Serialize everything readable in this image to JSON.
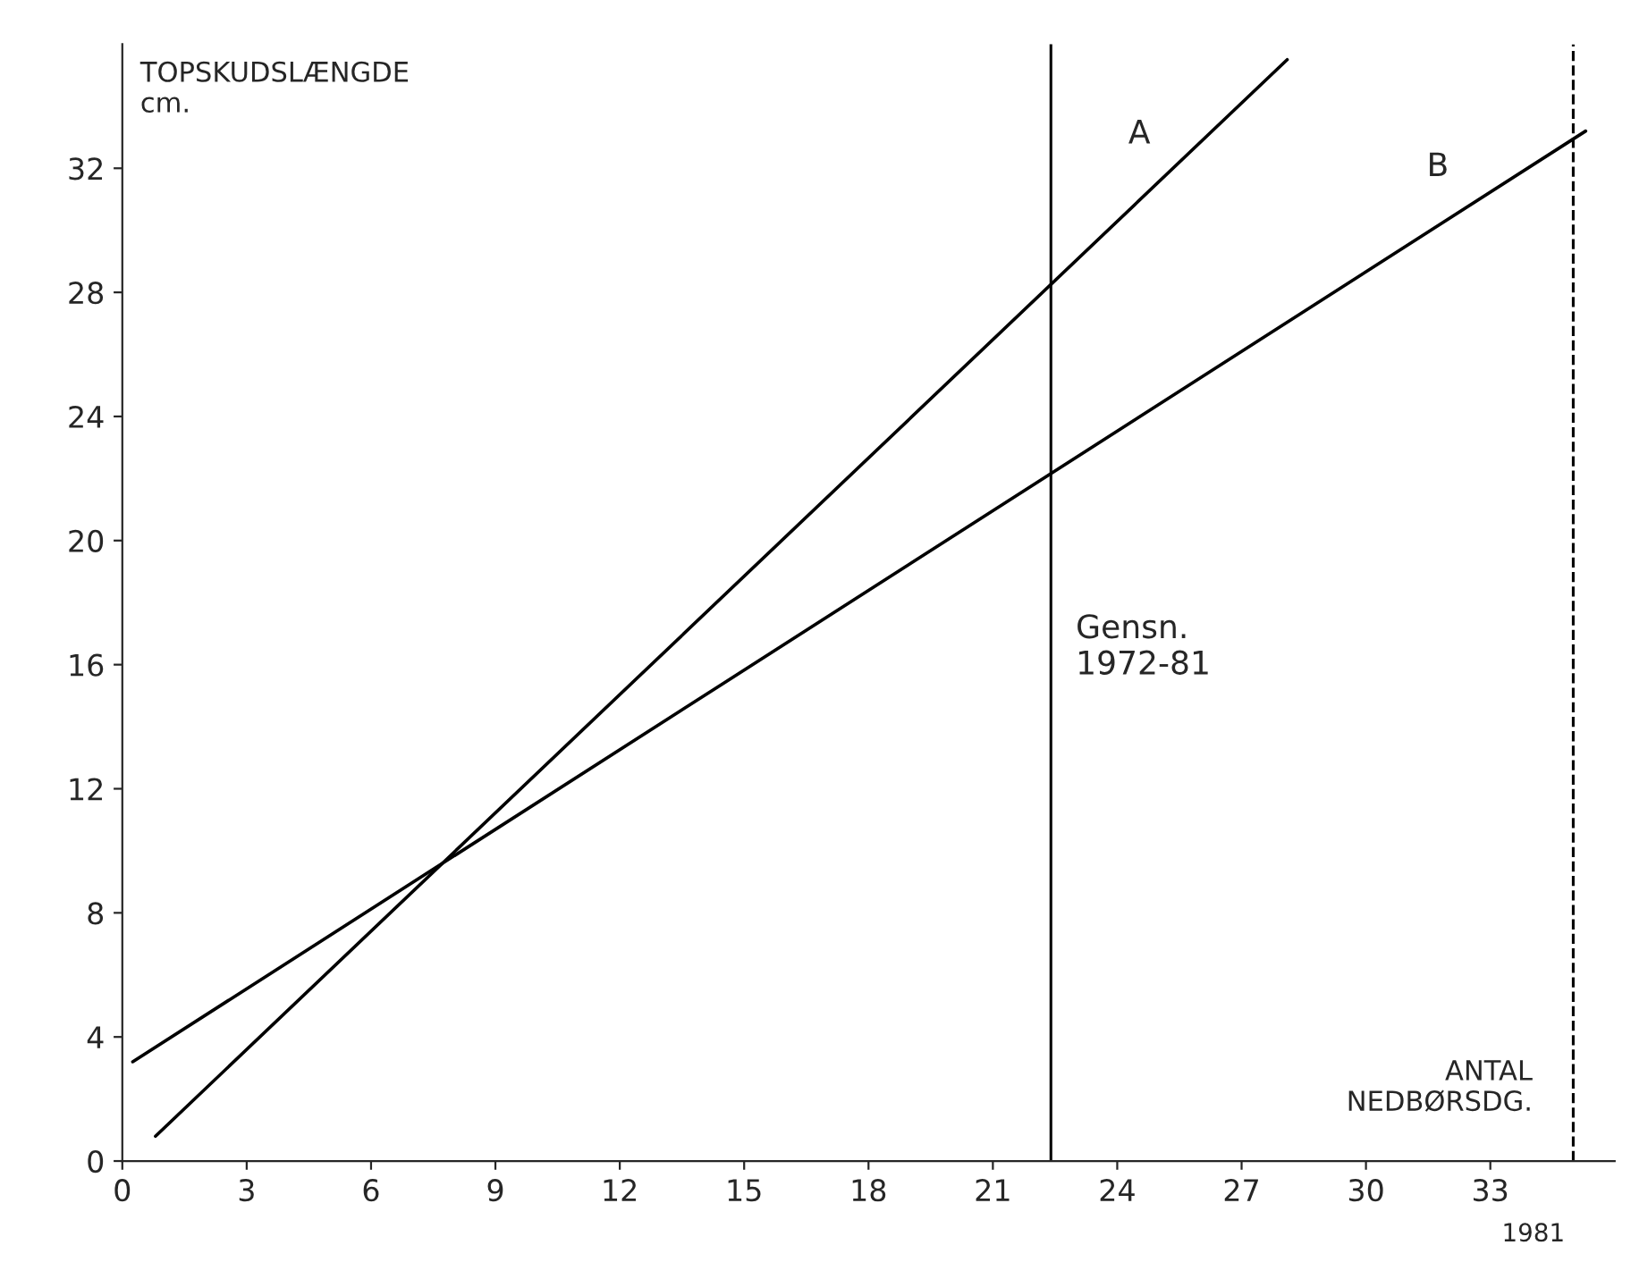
{
  "chart_data": {
    "type": "line",
    "xlabel": "ANTAL\nNEDBØRSDG.",
    "ylabel": "TOPSKUDSLÆNGDE\ncm.",
    "series": [
      {
        "name": "A",
        "color": "#000000",
        "x": [
          0.8,
          28.1
        ],
        "values": [
          0.8,
          35.5
        ]
      },
      {
        "name": "B",
        "color": "#000000",
        "x": [
          0.25,
          35.3
        ],
        "values": [
          3.2,
          33.2
        ]
      }
    ],
    "xlim": [
      0,
      36
    ],
    "ylim": [
      0,
      36
    ],
    "xticks": [
      0,
      3,
      6,
      9,
      12,
      15,
      18,
      21,
      24,
      27,
      30,
      33
    ],
    "yticks": [
      0,
      4,
      8,
      12,
      16,
      20,
      24,
      28,
      32
    ],
    "ref_lines": [
      {
        "axis": "x",
        "value": 22.4,
        "label": "Gensn.\n1972-81",
        "color": "#000000",
        "line_style": "solid"
      },
      {
        "axis": "x",
        "value": 35,
        "color": "#000000",
        "line_style": "dashed"
      }
    ],
    "annotations": [
      "1981"
    ],
    "legend": false,
    "grid": false,
    "marker": "none",
    "line_style": "solid"
  }
}
